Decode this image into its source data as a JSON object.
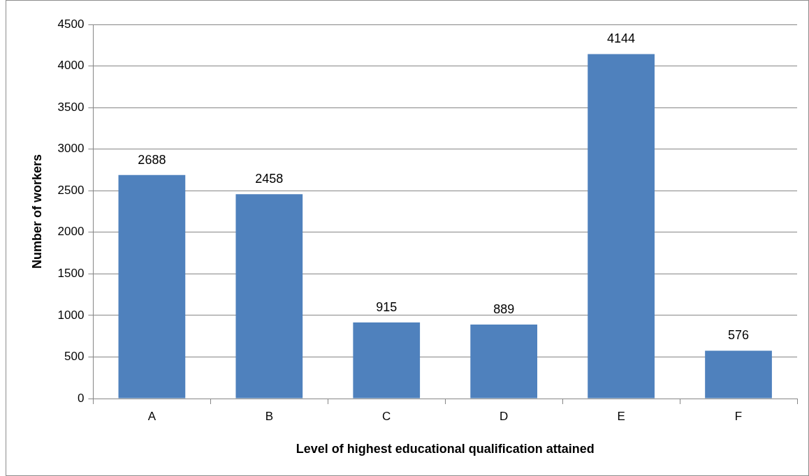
{
  "chart_data": {
    "type": "bar",
    "xlabel": "Level of highest educational qualification attained",
    "ylabel": "Number of workers",
    "categories": [
      "A",
      "B",
      "C",
      "D",
      "E",
      "F"
    ],
    "values": [
      2688,
      2458,
      915,
      889,
      4144,
      576
    ],
    "color": "#4f81bd",
    "ylim": [
      0,
      4500
    ],
    "yticks": [
      0,
      500,
      1000,
      1500,
      2000,
      2500,
      3000,
      3500,
      4000,
      4500
    ],
    "grid": "y",
    "legend": false,
    "data_labels": true
  }
}
